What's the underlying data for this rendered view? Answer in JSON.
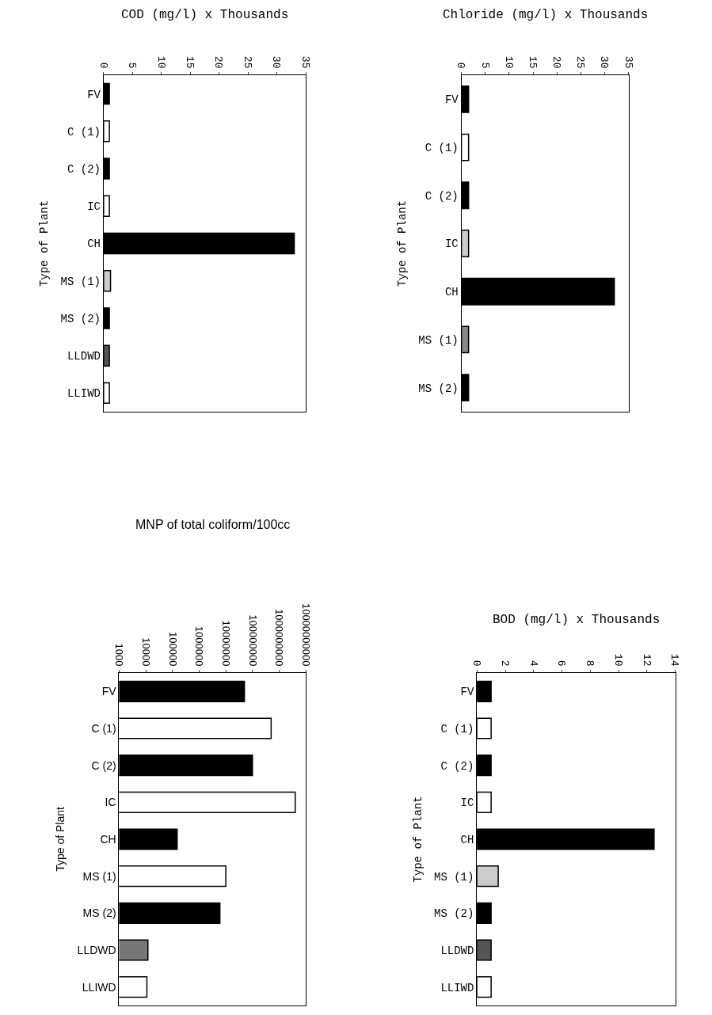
{
  "chart_data": [
    {
      "type": "bar",
      "orientation": "horizontal",
      "title": "COD (mg/l) x Thousands",
      "ylabel": "Type of Plant",
      "categories": [
        "FV",
        "C (1)",
        "C (2)",
        "IC",
        "CH",
        "MS (1)",
        "MS (2)",
        "LLDWD",
        "LLIWD"
      ],
      "values": [
        1,
        1,
        1,
        1,
        33,
        1.2,
        1,
        1,
        1
      ],
      "colors": [
        "#000000",
        "#ffffff",
        "#000000",
        "#ffffff",
        "#000000",
        "#cccccc",
        "#000000",
        "#555555",
        "#ffffff"
      ],
      "xlim": [
        0,
        35
      ],
      "xticks": [
        0,
        5,
        10,
        15,
        20,
        25,
        30,
        35
      ]
    },
    {
      "type": "bar",
      "orientation": "horizontal",
      "title": "Chloride (mg/l) x Thousands",
      "ylabel": "Type of Plant",
      "categories": [
        "FV",
        "C (1)",
        "C (2)",
        "IC",
        "CH",
        "MS (1)",
        "MS (2)"
      ],
      "values": [
        1.5,
        1.5,
        1.5,
        1.5,
        32,
        1.5,
        1.5
      ],
      "colors": [
        "#000000",
        "#ffffff",
        "#000000",
        "#cccccc",
        "#000000",
        "#888888",
        "#000000"
      ],
      "xlim": [
        0,
        35
      ],
      "xticks": [
        0,
        5,
        10,
        15,
        20,
        25,
        30,
        35
      ]
    },
    {
      "type": "bar",
      "orientation": "horizontal",
      "title": "MNP of total coliform/100cc",
      "ylabel": "Type of Plant",
      "categories": [
        "FV",
        "C (1)",
        "C (2)",
        "IC",
        "CH",
        "MS (1)",
        "MS (2)",
        "LLDWD",
        "LLIWD"
      ],
      "values": [
        50000000,
        500000000,
        100000000,
        4000000000,
        150000,
        10000000,
        6000000,
        12000,
        11000
      ],
      "colors": [
        "#000000",
        "#ffffff",
        "#000000",
        "#ffffff",
        "#000000",
        "#ffffff",
        "#000000",
        "#777777",
        "#ffffff"
      ],
      "log": "x",
      "xlim": [
        1000,
        10000000000
      ],
      "xticks": [
        1000,
        10000,
        100000,
        1000000,
        10000000,
        100000000,
        1000000000,
        10000000000
      ]
    },
    {
      "type": "bar",
      "orientation": "horizontal",
      "title": "BOD (mg/l) x Thousands",
      "ylabel": "Type of Plant",
      "categories": [
        "FV",
        "C (1)",
        "C (2)",
        "IC",
        "CH",
        "MS (1)",
        "MS (2)",
        "LLDWD",
        "LLIWD"
      ],
      "values": [
        1,
        1,
        1,
        1,
        12.5,
        1.5,
        1,
        1,
        1
      ],
      "colors": [
        "#000000",
        "#ffffff",
        "#000000",
        "#ffffff",
        "#000000",
        "#cccccc",
        "#000000",
        "#555555",
        "#ffffff"
      ],
      "xlim": [
        0,
        14
      ],
      "xticks": [
        0,
        2,
        4,
        6,
        8,
        10,
        12,
        14
      ]
    }
  ]
}
